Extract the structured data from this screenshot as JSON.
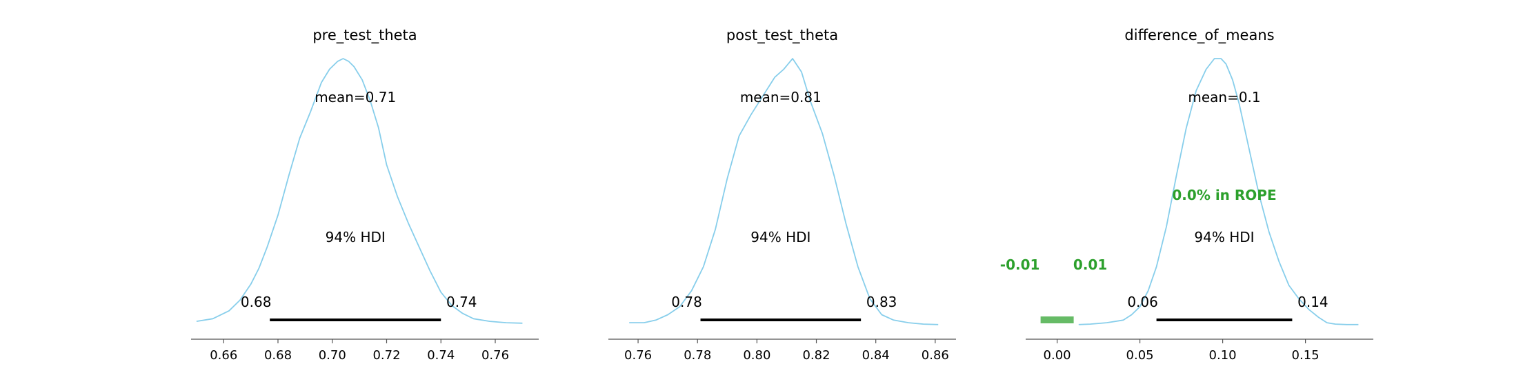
{
  "chart_data": [
    {
      "type": "area",
      "title": "pre_test_theta",
      "mean_label": "mean=0.71",
      "hdi_label": "94% HDI",
      "hdi": [
        0.677,
        0.74
      ],
      "hdi_low_label": "0.68",
      "hdi_high_label": "0.74",
      "xlim": [
        0.648,
        0.776
      ],
      "xticks": [
        0.66,
        0.68,
        0.7,
        0.72,
        0.74,
        0.76
      ],
      "xtick_labels": [
        "0.66",
        "0.68",
        "0.70",
        "0.72",
        "0.74",
        "0.76"
      ],
      "line_color": "#87ceeb",
      "hdi_color": "#000000",
      "density": {
        "x": [
          0.65,
          0.656,
          0.662,
          0.666,
          0.67,
          0.673,
          0.676,
          0.68,
          0.684,
          0.688,
          0.692,
          0.696,
          0.699,
          0.702,
          0.704,
          0.706,
          0.708,
          0.711,
          0.714,
          0.717,
          0.72,
          0.724,
          0.728,
          0.732,
          0.736,
          0.74,
          0.744,
          0.748,
          0.752,
          0.758,
          0.764,
          0.77
        ],
        "y": [
          0.01,
          0.02,
          0.05,
          0.09,
          0.15,
          0.21,
          0.29,
          0.41,
          0.56,
          0.7,
          0.8,
          0.91,
          0.96,
          0.99,
          1.0,
          0.99,
          0.97,
          0.92,
          0.84,
          0.74,
          0.6,
          0.48,
          0.38,
          0.29,
          0.2,
          0.12,
          0.07,
          0.04,
          0.02,
          0.01,
          0.005,
          0.003
        ]
      }
    },
    {
      "type": "area",
      "title": "post_test_theta",
      "mean_label": "mean=0.81",
      "hdi_label": "94% HDI",
      "hdi": [
        0.781,
        0.835
      ],
      "hdi_low_label": "0.78",
      "hdi_high_label": "0.83",
      "xlim": [
        0.75,
        0.867
      ],
      "xticks": [
        0.76,
        0.78,
        0.8,
        0.82,
        0.84,
        0.86
      ],
      "xtick_labels": [
        "0.76",
        "0.78",
        "0.80",
        "0.82",
        "0.84",
        "0.86"
      ],
      "line_color": "#87ceeb",
      "hdi_color": "#000000",
      "density": {
        "x": [
          0.757,
          0.762,
          0.766,
          0.77,
          0.774,
          0.778,
          0.782,
          0.786,
          0.79,
          0.794,
          0.798,
          0.802,
          0.806,
          0.809,
          0.812,
          0.815,
          0.818,
          0.822,
          0.826,
          0.83,
          0.834,
          0.838,
          0.842,
          0.846,
          0.851,
          0.856,
          0.861
        ],
        "y": [
          0.01,
          0.01,
          0.02,
          0.04,
          0.07,
          0.13,
          0.22,
          0.36,
          0.55,
          0.71,
          0.79,
          0.86,
          0.93,
          0.96,
          1.0,
          0.95,
          0.84,
          0.72,
          0.56,
          0.38,
          0.22,
          0.1,
          0.04,
          0.02,
          0.01,
          0.005,
          0.003
        ]
      }
    },
    {
      "type": "area",
      "title": "difference_of_means",
      "mean_label": "mean=0.1",
      "hdi_label": "94% HDI",
      "hdi": [
        0.06,
        0.142
      ],
      "hdi_low_label": "0.06",
      "hdi_high_label": "0.14",
      "rope": [
        -0.01,
        0.01
      ],
      "rope_low_label": "-0.01",
      "rope_high_label": "0.01",
      "rope_text": "0.0% in ROPE",
      "xlim": [
        -0.019,
        0.191
      ],
      "xticks": [
        0.0,
        0.05,
        0.1,
        0.15
      ],
      "xtick_labels": [
        "0.00",
        "0.05",
        "0.10",
        "0.15"
      ],
      "line_color": "#87ceeb",
      "hdi_color": "#000000",
      "rope_color": "#66bb66",
      "rope_text_color": "#2ca02c",
      "density": {
        "x": [
          0.013,
          0.02,
          0.03,
          0.04,
          0.045,
          0.05,
          0.055,
          0.06,
          0.066,
          0.072,
          0.078,
          0.084,
          0.09,
          0.095,
          0.099,
          0.102,
          0.106,
          0.11,
          0.116,
          0.122,
          0.128,
          0.134,
          0.14,
          0.146,
          0.152,
          0.158,
          0.163,
          0.168,
          0.175,
          0.182
        ],
        "y": [
          0.003,
          0.005,
          0.01,
          0.02,
          0.04,
          0.07,
          0.13,
          0.22,
          0.37,
          0.56,
          0.74,
          0.88,
          0.96,
          1.0,
          1.0,
          0.98,
          0.92,
          0.83,
          0.66,
          0.49,
          0.35,
          0.24,
          0.15,
          0.1,
          0.06,
          0.03,
          0.01,
          0.005,
          0.003,
          0.003
        ]
      }
    }
  ]
}
